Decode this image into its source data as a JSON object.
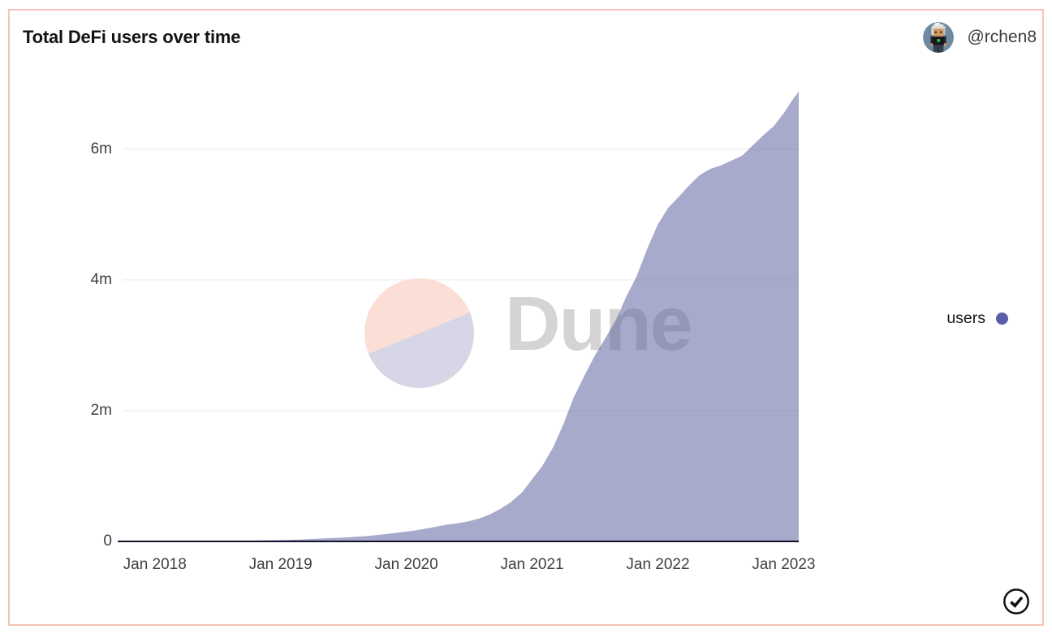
{
  "card": {
    "title": "Total DeFi users over time",
    "border_color": "#f8c3b5",
    "author": {
      "handle": "@rchen8",
      "avatar_icon": "voxel-avatar"
    }
  },
  "legend": {
    "label": "users",
    "dot_color": "#585fa8",
    "position": "right-middle"
  },
  "watermark": {
    "brand": "Dune",
    "logo_icon": "dune-pie-logo",
    "circle_top_color": "#fbdfd6",
    "circle_bottom_color": "#d7d6e6",
    "text_color": "#d4d4d4"
  },
  "footer": {
    "verified_icon": "check-circle"
  },
  "chart_data": {
    "type": "area",
    "title": "Total DeFi users over time",
    "xlabel": "",
    "ylabel": "",
    "grid": "horizontal",
    "legend_position": "right-middle",
    "x_range": [
      2017.75,
      2023.12
    ],
    "y_range": [
      0,
      7.04
    ],
    "y_unit": "millions of users",
    "x_ticks": [
      {
        "t": 2018.0,
        "label": "Jan 2018"
      },
      {
        "t": 2019.0,
        "label": "Jan 2019"
      },
      {
        "t": 2020.0,
        "label": "Jan 2020"
      },
      {
        "t": 2021.0,
        "label": "Jan 2021"
      },
      {
        "t": 2022.0,
        "label": "Jan 2022"
      },
      {
        "t": 2023.0,
        "label": "Jan 2023"
      }
    ],
    "y_ticks": [
      {
        "v": 0,
        "label": "0"
      },
      {
        "v": 2,
        "label": "2m"
      },
      {
        "v": 4,
        "label": "4m"
      },
      {
        "v": 6,
        "label": "6m"
      }
    ],
    "series": [
      {
        "name": "users",
        "color": "#585fa8",
        "fill": "rgba(95,98,160,0.54)",
        "points": [
          [
            2017.76,
            0.001
          ],
          [
            2018.0,
            0.003
          ],
          [
            2018.25,
            0.005
          ],
          [
            2018.5,
            0.008
          ],
          [
            2018.75,
            0.012
          ],
          [
            2019.0,
            0.02
          ],
          [
            2019.17,
            0.03
          ],
          [
            2019.33,
            0.045
          ],
          [
            2019.5,
            0.06
          ],
          [
            2019.67,
            0.08
          ],
          [
            2019.83,
            0.11
          ],
          [
            2020.0,
            0.15
          ],
          [
            2020.08,
            0.17
          ],
          [
            2020.17,
            0.2
          ],
          [
            2020.25,
            0.23
          ],
          [
            2020.33,
            0.26
          ],
          [
            2020.42,
            0.28
          ],
          [
            2020.5,
            0.31
          ],
          [
            2020.58,
            0.35
          ],
          [
            2020.67,
            0.42
          ],
          [
            2020.75,
            0.5
          ],
          [
            2020.83,
            0.6
          ],
          [
            2020.92,
            0.75
          ],
          [
            2021.0,
            0.95
          ],
          [
            2021.08,
            1.15
          ],
          [
            2021.17,
            1.45
          ],
          [
            2021.25,
            1.8
          ],
          [
            2021.33,
            2.2
          ],
          [
            2021.42,
            2.55
          ],
          [
            2021.5,
            2.85
          ],
          [
            2021.58,
            3.1
          ],
          [
            2021.67,
            3.4
          ],
          [
            2021.75,
            3.75
          ],
          [
            2021.83,
            4.05
          ],
          [
            2021.92,
            4.5
          ],
          [
            2022.0,
            4.85
          ],
          [
            2022.08,
            5.1
          ],
          [
            2022.17,
            5.28
          ],
          [
            2022.25,
            5.45
          ],
          [
            2022.33,
            5.6
          ],
          [
            2022.42,
            5.7
          ],
          [
            2022.5,
            5.75
          ],
          [
            2022.58,
            5.82
          ],
          [
            2022.67,
            5.9
          ],
          [
            2022.75,
            6.05
          ],
          [
            2022.83,
            6.2
          ],
          [
            2022.92,
            6.35
          ],
          [
            2023.0,
            6.55
          ],
          [
            2023.08,
            6.78
          ],
          [
            2023.12,
            6.88
          ]
        ]
      }
    ],
    "axis_line_color": "#13132b",
    "gridline_color": "#e9e9e9"
  }
}
